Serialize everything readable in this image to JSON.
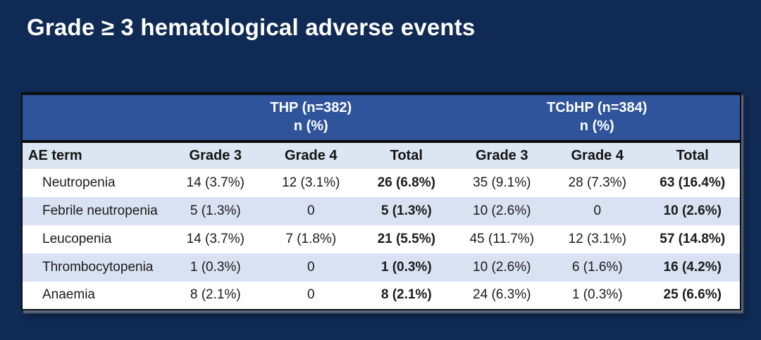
{
  "title": "Grade ≥ 3 hematological adverse events",
  "colors": {
    "background_navy": "#0F2A54",
    "band_blue": "#2F549B",
    "header_row_blue": "#DCE5F2",
    "alt_row_blue": "#D9E2F2",
    "white_row": "#FFFFFF",
    "border_dark": "#0D0D0D",
    "title_text": "#FFFFFF",
    "body_text": "#1B1B1B"
  },
  "table": {
    "groups": [
      {
        "title": "THP (n=382)",
        "subtitle": "n (%)"
      },
      {
        "title": "TCbHP (n=384)",
        "subtitle": "n (%)"
      }
    ],
    "column_headers": [
      "AE term",
      "Grade 3",
      "Grade 4",
      "Total",
      "Grade 3",
      "Grade 4",
      "Total"
    ],
    "rows": [
      {
        "term": "Neutropenia",
        "values": [
          "14 (3.7%)",
          "12 (3.1%)",
          "26 (6.8%)",
          "35 (9.1%)",
          "28 (7.3%)",
          "63 (16.4%)"
        ]
      },
      {
        "term": "Febrile neutropenia",
        "values": [
          "5 (1.3%)",
          "0",
          "5 (1.3%)",
          "10 (2.6%)",
          "0",
          "10 (2.6%)"
        ]
      },
      {
        "term": "Leucopenia",
        "values": [
          "14 (3.7%)",
          "7 (1.8%)",
          "21 (5.5%)",
          "45 (11.7%)",
          "12 (3.1%)",
          "57 (14.8%)"
        ]
      },
      {
        "term": "Thrombocytopenia",
        "values": [
          "1 (0.3%)",
          "0",
          "1 (0.3%)",
          "10 (2.6%)",
          "6 (1.6%)",
          "16 (4.2%)"
        ]
      },
      {
        "term": "Anaemia",
        "values": [
          "8 (2.1%)",
          "0",
          "8 (2.1%)",
          "24 (6.3%)",
          "1 (0.3%)",
          "25 (6.6%)"
        ]
      }
    ]
  },
  "chart_data": {
    "type": "table",
    "title": "Grade ≥ 3 hematological adverse events",
    "column_groups": [
      "THP (n=382) n (%)",
      "TCbHP (n=384) n (%)"
    ],
    "columns": [
      "AE term",
      "THP Grade 3",
      "THP Grade 4",
      "THP Total",
      "TCbHP Grade 3",
      "TCbHP Grade 4",
      "TCbHP Total"
    ],
    "rows": [
      [
        "Neutropenia",
        "14 (3.7%)",
        "12 (3.1%)",
        "26 (6.8%)",
        "35 (9.1%)",
        "28 (7.3%)",
        "63 (16.4%)"
      ],
      [
        "Febrile neutropenia",
        "5 (1.3%)",
        "0",
        "5 (1.3%)",
        "10 (2.6%)",
        "0",
        "10 (2.6%)"
      ],
      [
        "Leucopenia",
        "14 (3.7%)",
        "7 (1.8%)",
        "21 (5.5%)",
        "45 (11.7%)",
        "12 (3.1%)",
        "57 (14.8%)"
      ],
      [
        "Thrombocytopenia",
        "1 (0.3%)",
        "0",
        "1 (0.3%)",
        "10 (2.6%)",
        "6 (1.6%)",
        "16 (4.2%)"
      ],
      [
        "Anaemia",
        "8 (2.1%)",
        "0",
        "8 (2.1%)",
        "24 (6.3%)",
        "1 (0.3%)",
        "25 (6.6%)"
      ]
    ]
  }
}
